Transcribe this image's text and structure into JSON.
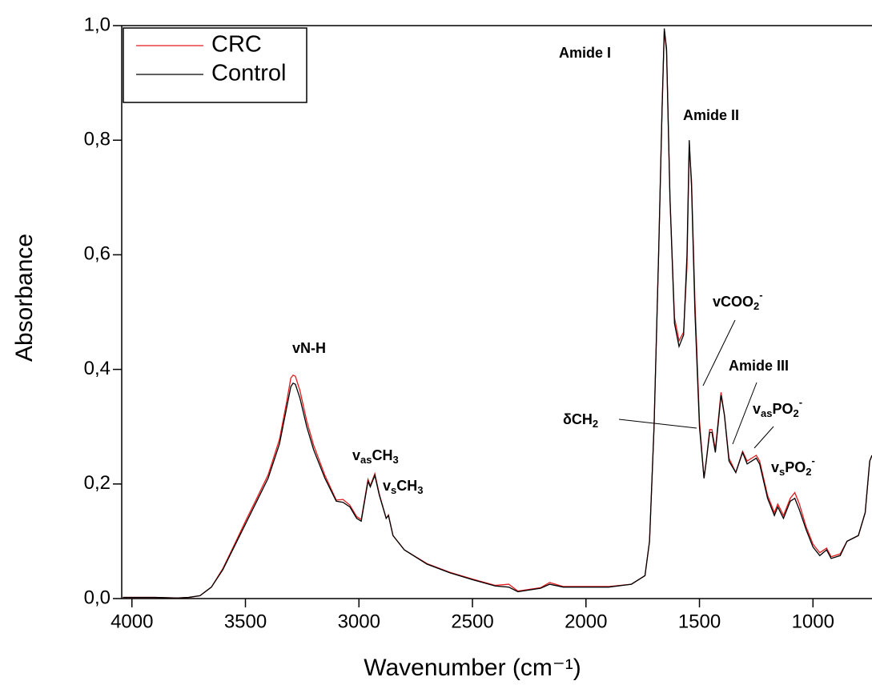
{
  "chart_data": {
    "type": "line",
    "x_label": "Wavenumber (cm⁻¹)",
    "y_label": "Absorbance",
    "xlim": [
      4045,
      740
    ],
    "ylim": [
      0,
      1
    ],
    "xticks": [
      4000,
      3500,
      3000,
      2500,
      2000,
      1500,
      1000
    ],
    "yticks": [
      {
        "value": 0,
        "label": "0,0"
      },
      {
        "value": 0.2,
        "label": "0,2"
      },
      {
        "value": 0.4,
        "label": "0,4"
      },
      {
        "value": 0.6,
        "label": "0,6"
      },
      {
        "value": 0.8,
        "label": "0,8"
      },
      {
        "value": 1,
        "label": "1,0"
      }
    ],
    "legend": "upper left",
    "x": [
      4040,
      3900,
      3800,
      3750,
      3700,
      3650,
      3600,
      3550,
      3500,
      3450,
      3400,
      3350,
      3320,
      3300,
      3290,
      3280,
      3260,
      3230,
      3200,
      3150,
      3100,
      3070,
      3040,
      3010,
      2990,
      2960,
      2950,
      2930,
      2910,
      2880,
      2870,
      2850,
      2800,
      2700,
      2600,
      2500,
      2400,
      2340,
      2300,
      2200,
      2160,
      2100,
      2000,
      1900,
      1800,
      1760,
      1740,
      1720,
      1700,
      1680,
      1665,
      1655,
      1645,
      1630,
      1610,
      1590,
      1570,
      1555,
      1545,
      1535,
      1520,
      1500,
      1480,
      1470,
      1455,
      1445,
      1430,
      1405,
      1390,
      1370,
      1340,
      1310,
      1290,
      1250,
      1235,
      1200,
      1170,
      1155,
      1130,
      1100,
      1080,
      1060,
      1030,
      1000,
      970,
      940,
      920,
      880,
      850,
      800,
      770,
      750,
      740
    ],
    "series": [
      {
        "name": "CRC",
        "color": "#e41a1c",
        "values": [
          0.002,
          0.002,
          0.001,
          0.002,
          0.005,
          0.02,
          0.052,
          0.093,
          0.135,
          0.175,
          0.216,
          0.278,
          0.34,
          0.385,
          0.39,
          0.388,
          0.363,
          0.31,
          0.268,
          0.215,
          0.172,
          0.173,
          0.163,
          0.143,
          0.138,
          0.208,
          0.197,
          0.218,
          0.182,
          0.14,
          0.146,
          0.11,
          0.085,
          0.061,
          0.046,
          0.034,
          0.023,
          0.025,
          0.013,
          0.019,
          0.028,
          0.021,
          0.021,
          0.021,
          0.025,
          0.035,
          0.04,
          0.1,
          0.3,
          0.6,
          0.85,
          0.99,
          0.955,
          0.7,
          0.49,
          0.45,
          0.465,
          0.58,
          0.79,
          0.73,
          0.52,
          0.31,
          0.21,
          0.24,
          0.295,
          0.295,
          0.26,
          0.36,
          0.32,
          0.245,
          0.22,
          0.257,
          0.24,
          0.25,
          0.24,
          0.18,
          0.15,
          0.165,
          0.145,
          0.175,
          0.185,
          0.165,
          0.125,
          0.095,
          0.08,
          0.088,
          0.073,
          0.078,
          0.1,
          0.11,
          0.15,
          0.24,
          0.25
        ]
      },
      {
        "name": "Control",
        "color": "#000000",
        "values": [
          0.002,
          0.002,
          0.001,
          0.002,
          0.005,
          0.02,
          0.05,
          0.09,
          0.13,
          0.17,
          0.21,
          0.27,
          0.33,
          0.37,
          0.376,
          0.374,
          0.35,
          0.3,
          0.26,
          0.21,
          0.17,
          0.168,
          0.16,
          0.14,
          0.135,
          0.205,
          0.195,
          0.215,
          0.18,
          0.14,
          0.145,
          0.11,
          0.085,
          0.06,
          0.045,
          0.033,
          0.022,
          0.02,
          0.012,
          0.018,
          0.025,
          0.02,
          0.02,
          0.02,
          0.025,
          0.035,
          0.04,
          0.1,
          0.3,
          0.6,
          0.85,
          0.995,
          0.96,
          0.7,
          0.48,
          0.44,
          0.46,
          0.6,
          0.8,
          0.72,
          0.5,
          0.3,
          0.21,
          0.24,
          0.29,
          0.29,
          0.255,
          0.355,
          0.32,
          0.24,
          0.22,
          0.255,
          0.235,
          0.245,
          0.235,
          0.175,
          0.145,
          0.16,
          0.14,
          0.17,
          0.175,
          0.155,
          0.12,
          0.09,
          0.075,
          0.085,
          0.07,
          0.075,
          0.1,
          0.11,
          0.15,
          0.24,
          0.25
        ]
      }
    ],
    "annotations": [
      {
        "segments": [
          {
            "t": "vN-H"
          }
        ]
      },
      {
        "segments": [
          {
            "t": "v"
          },
          {
            "t": "as",
            "shift": "sub"
          },
          {
            "t": "CH"
          },
          {
            "t": "3",
            "shift": "sub"
          }
        ]
      },
      {
        "segments": [
          {
            "t": "v"
          },
          {
            "t": "s",
            "shift": "sub"
          },
          {
            "t": "CH"
          },
          {
            "t": "3",
            "shift": "sub"
          }
        ]
      },
      {
        "segments": [
          {
            "t": "Amide I"
          }
        ]
      },
      {
        "segments": [
          {
            "t": "Amide II"
          }
        ]
      },
      {
        "segments": [
          {
            "t": "vCOO"
          },
          {
            "t": "2",
            "shift": "sub"
          },
          {
            "t": "-",
            "shift": "super"
          }
        ]
      },
      {
        "segments": [
          {
            "t": "δCH"
          },
          {
            "t": "2",
            "shift": "sub"
          }
        ]
      },
      {
        "segments": [
          {
            "t": "Amide III"
          }
        ]
      },
      {
        "segments": [
          {
            "t": "v"
          },
          {
            "t": "as",
            "shift": "sub"
          },
          {
            "t": "PO"
          },
          {
            "t": "2",
            "shift": "sub"
          },
          {
            "t": "-",
            "shift": "super"
          }
        ]
      },
      {
        "segments": [
          {
            "t": "v"
          },
          {
            "t": "s",
            "shift": "sub"
          },
          {
            "t": "PO"
          },
          {
            "t": "2",
            "shift": "sub"
          },
          {
            "t": "-",
            "shift": "super"
          }
        ]
      }
    ]
  }
}
